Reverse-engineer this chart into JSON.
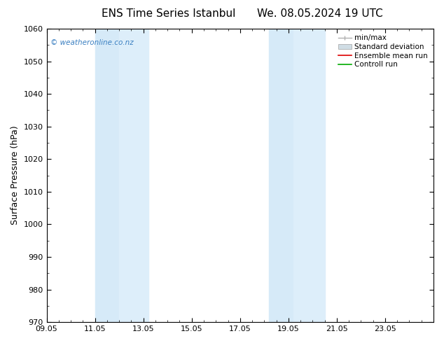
{
  "title_left": "ENS Time Series Istanbul",
  "title_right": "We. 08.05.2024 19 UTC",
  "ylabel": "Surface Pressure (hPa)",
  "ylim": [
    970,
    1060
  ],
  "yticks": [
    970,
    980,
    990,
    1000,
    1010,
    1020,
    1030,
    1040,
    1050,
    1060
  ],
  "xlim": [
    0,
    16
  ],
  "xtick_labels": [
    "09.05",
    "11.05",
    "13.05",
    "15.05",
    "17.05",
    "19.05",
    "21.05",
    "23.05"
  ],
  "xtick_positions": [
    0,
    2,
    4,
    6,
    8,
    10,
    12,
    14
  ],
  "shaded_bands": [
    {
      "x_start": 2.0,
      "x_end": 3.0,
      "color": "#d6eaf8"
    },
    {
      "x_start": 3.0,
      "x_end": 4.2,
      "color": "#ddeefa"
    },
    {
      "x_start": 9.2,
      "x_end": 10.2,
      "color": "#d6eaf8"
    },
    {
      "x_start": 10.2,
      "x_end": 11.5,
      "color": "#ddeefa"
    }
  ],
  "watermark": "© weatheronline.co.nz",
  "watermark_color": "#3a7fc1",
  "legend_labels": [
    "min/max",
    "Standard deviation",
    "Ensemble mean run",
    "Controll run"
  ],
  "legend_line_colors": [
    "#b0b0b0",
    "#c8d8e0",
    "#dd0000",
    "#00aa00"
  ],
  "bg_color": "#ffffff",
  "tick_label_fontsize": 8,
  "title_fontsize": 11,
  "ylabel_fontsize": 9
}
